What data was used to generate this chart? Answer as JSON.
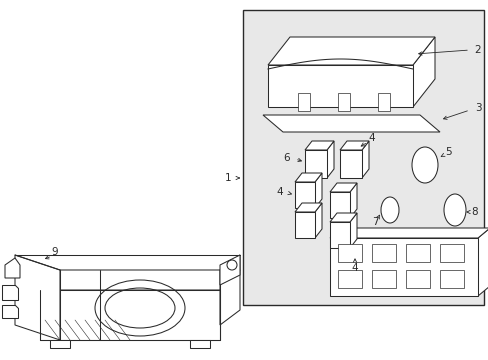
{
  "bg_color": "#ffffff",
  "box_bg": "#e8e8e8",
  "line_color": "#2a2a2a",
  "lw": 0.75,
  "fig_w": 4.89,
  "fig_h": 3.6,
  "dpi": 100
}
